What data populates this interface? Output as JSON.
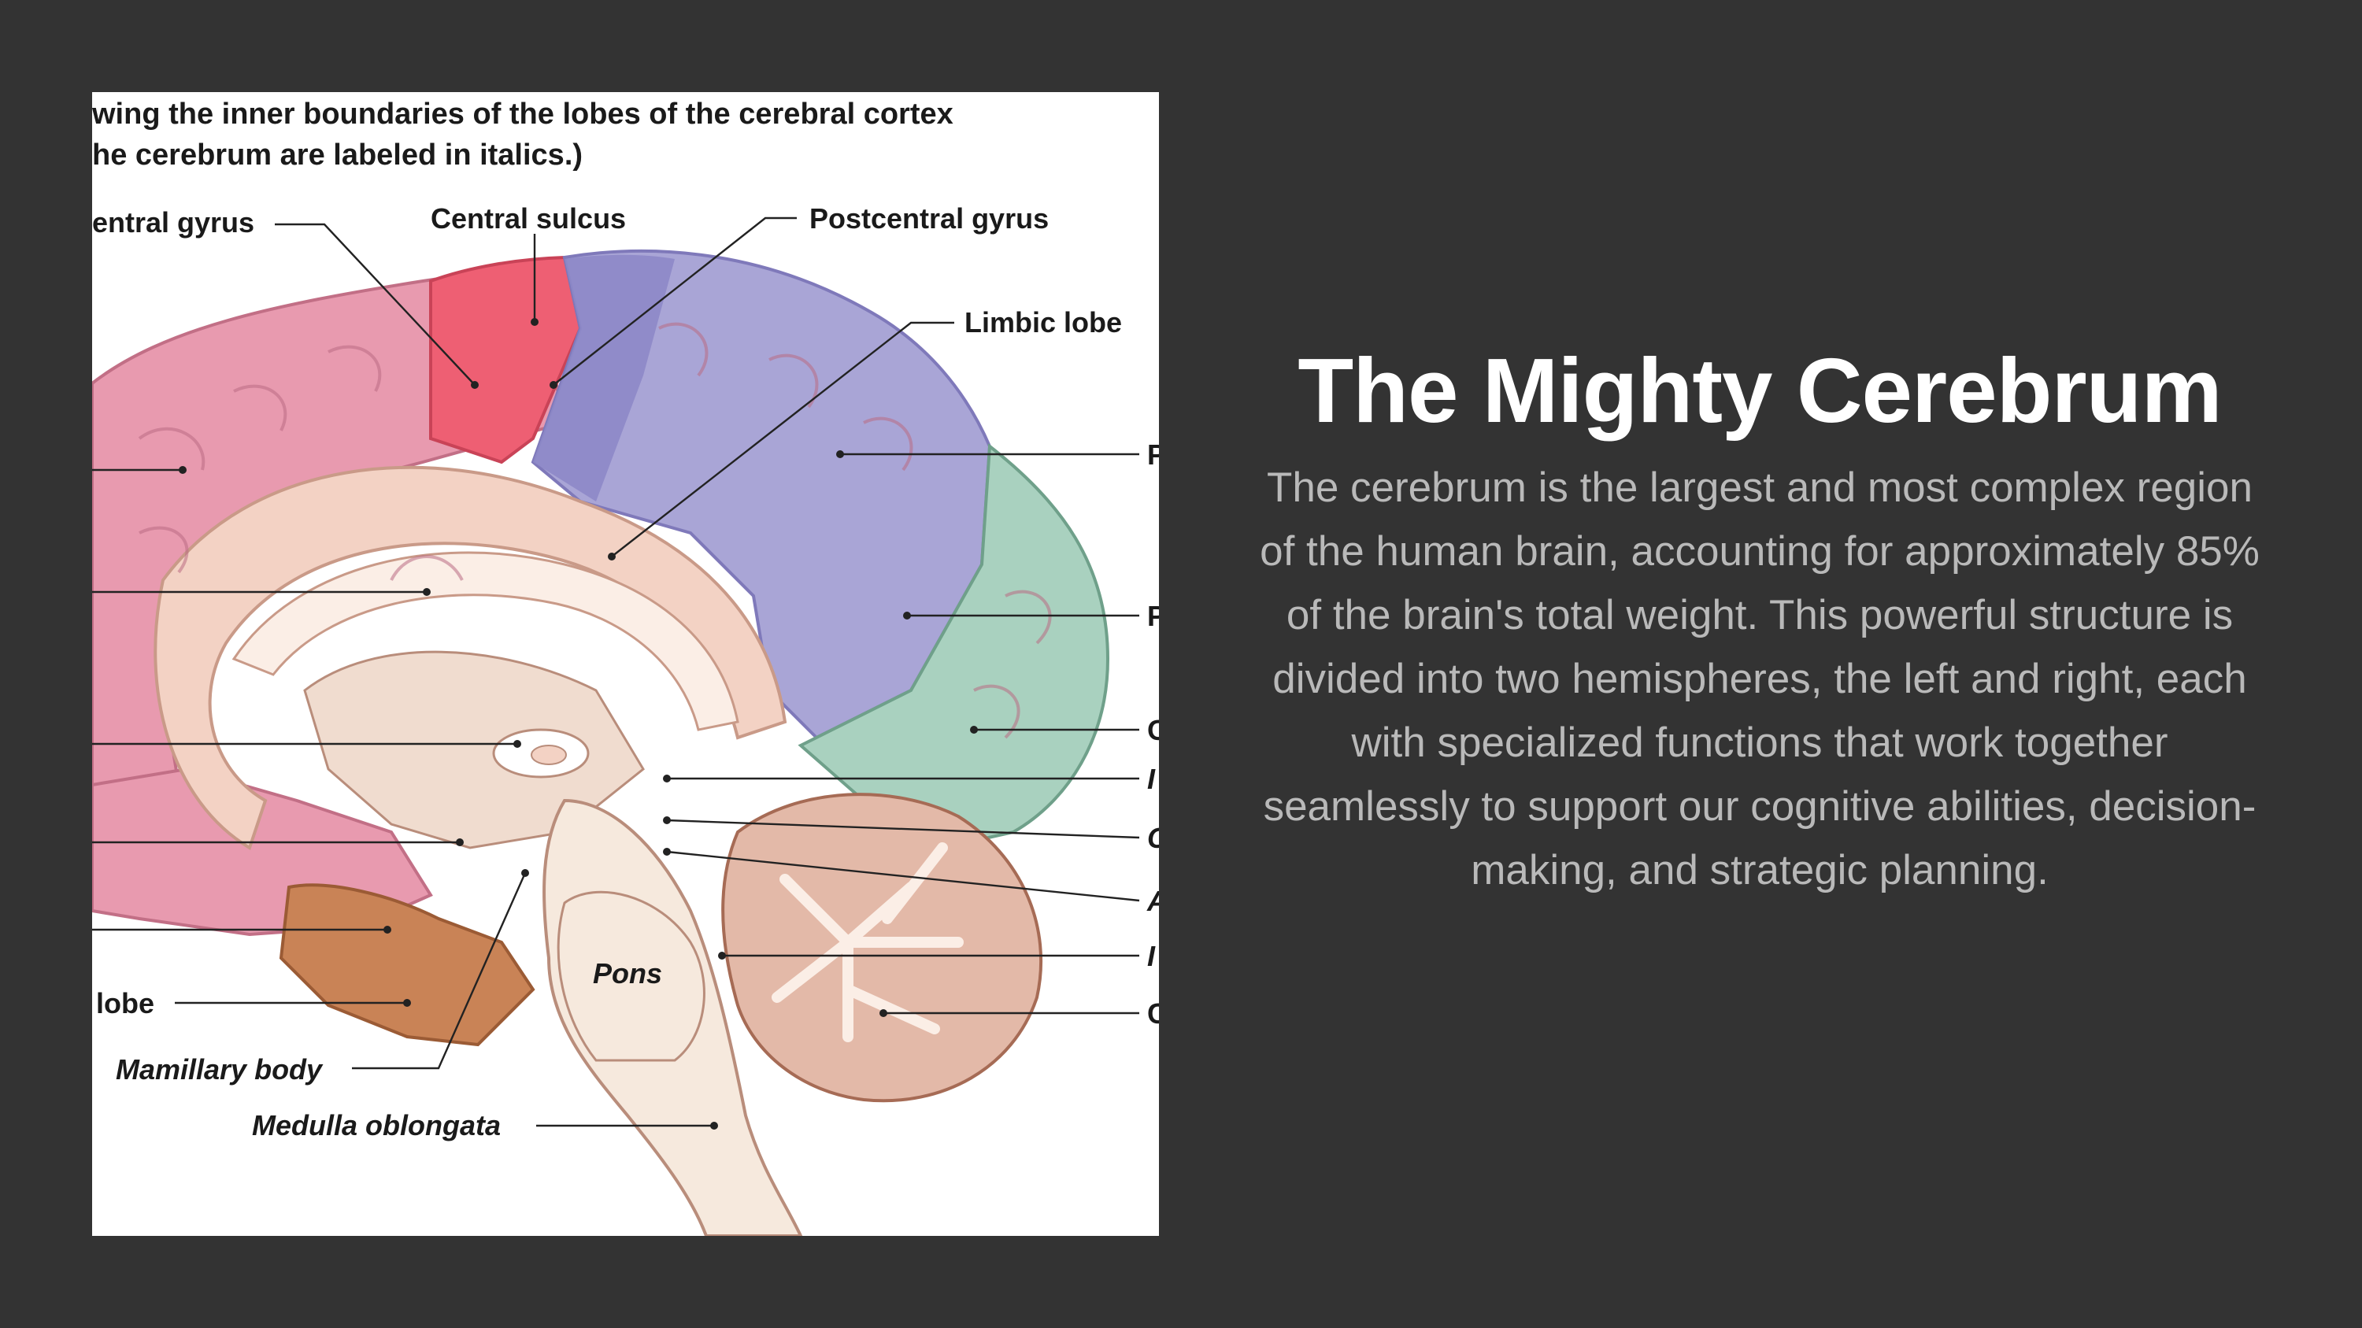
{
  "slide": {
    "title": "The Mighty Cerebrum",
    "body": "The cerebrum is the largest and most complex region of the human brain, accounting for approximately 85% of the brain's total weight. This powerful structure is divided into two hemispheres, the left and right, each with specialized functions that work together seamlessly to support our cognitive abilities, decision-making, and strategic planning."
  },
  "figure": {
    "caption_line1": "wing the inner boundaries of the lobes of the cerebral cortex",
    "caption_line2": "he cerebrum are labeled in italics.)",
    "labels": {
      "precentral_gyrus": "entral gyrus",
      "central_sulcus": "Central sulcus",
      "postcentral_gyrus": "Postcentral gyrus",
      "limbic_lobe": "Limbic lobe",
      "temporal_lobe": "lobe",
      "mamillary_body": "Mamillary body",
      "medulla_oblongata": "Medulla oblongata",
      "pons": "Pons",
      "right_cut_1": "P",
      "right_cut_2": "P",
      "right_cut_3": "O",
      "right_cut_4": "I",
      "right_cut_5": "C",
      "right_cut_6": "A",
      "right_cut_7": "I",
      "right_cut_8": "C"
    },
    "colors": {
      "frontal": "#e89aaf",
      "precentral": "#ee5f73",
      "parietal": "#a9a5d6",
      "parietal_dark": "#8d88c8",
      "occipital": "#a9d1bf",
      "limbic": "#f3d2c4",
      "temporal": "#c98356",
      "cerebellum": "#e3b9a8",
      "brainstem": "#f6e9dd"
    }
  }
}
